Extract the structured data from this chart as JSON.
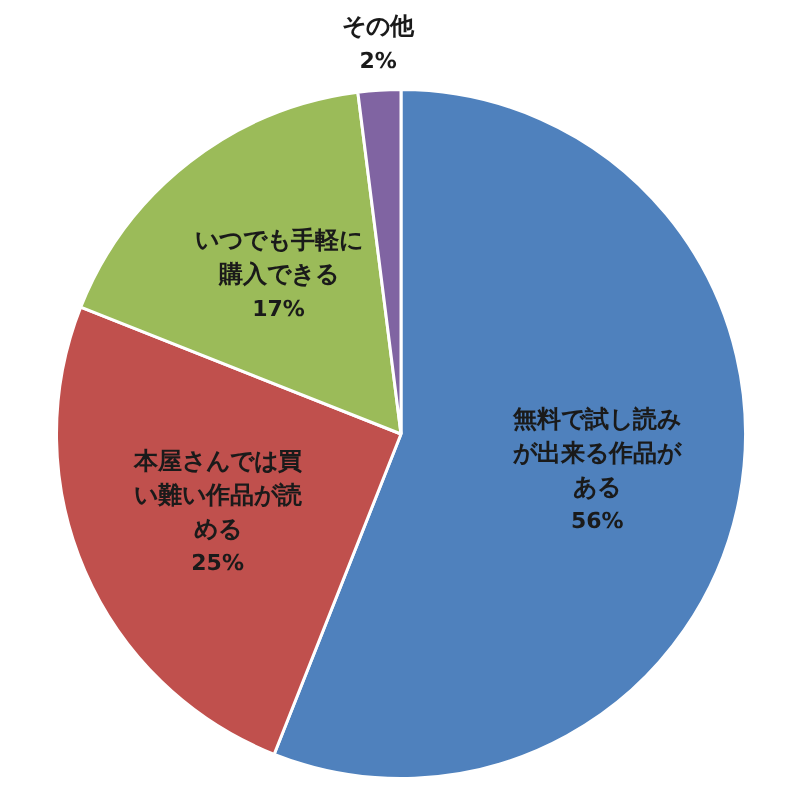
{
  "chart_data": {
    "type": "pie",
    "categories": [
      "無料で試し読みが出来る作品がある",
      "本屋さんでは買い難い作品が読める",
      "いつでも手軽に購入できる",
      "その他"
    ],
    "values": [
      56,
      25,
      17,
      2
    ],
    "value_labels": [
      "56%",
      "25%",
      "17%",
      "2%"
    ],
    "colors": [
      "#4f81bd",
      "#c0504d",
      "#9bbb59",
      "#8064a2"
    ],
    "legend": false
  }
}
